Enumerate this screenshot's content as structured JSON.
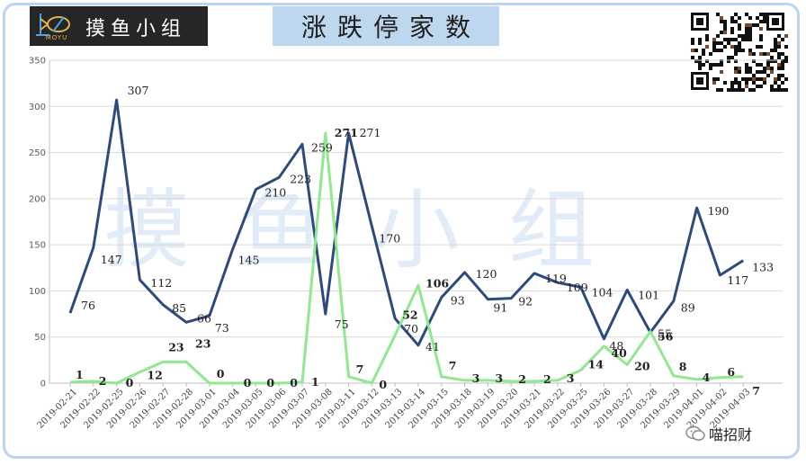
{
  "logo": {
    "name": "摸鱼小组",
    "sub": "MOYU",
    "icon": "fish-logo-icon"
  },
  "title": "涨跌停家数",
  "watermark": "摸鱼小组",
  "credit": {
    "text": "喵招财",
    "icon": "wechat-icon"
  },
  "qr": {
    "icon": "qr-code-icon"
  },
  "colors": {
    "limit_up": "#2e4a7d",
    "limit_down": "#90e890",
    "grid": "#d9d9d9",
    "frame": "#b9d5ef",
    "title_bg": "#bdd7ee"
  },
  "chart_data": {
    "type": "line",
    "title": "涨跌停家数",
    "xlabel": "",
    "ylabel": "",
    "ylim": [
      0,
      350
    ],
    "yticks": [
      0,
      50,
      100,
      150,
      200,
      250,
      300,
      350
    ],
    "grid": true,
    "legend": "none",
    "categories": [
      "2019-02-21",
      "2019-02-22",
      "2019-02-25",
      "2019-02-26",
      "2019-02-27",
      "2019-02-28",
      "2019-03-01",
      "2019-03-04",
      "2019-03-05",
      "2019-03-06",
      "2019-03-07",
      "2019-03-08",
      "2019-03-11",
      "2019-03-12",
      "2019-03-13",
      "2019-03-14",
      "2019-03-15",
      "2019-03-18",
      "2019-03-19",
      "2019-03-20",
      "2019-03-21",
      "2019-03-22",
      "2019-03-25",
      "2019-03-26",
      "2019-03-27",
      "2019-03-28",
      "2019-03-29",
      "2019-04-01",
      "2019-04-02",
      "2019-04-03"
    ],
    "series": [
      {
        "color": "#2e4a7d",
        "values": [
          76,
          147,
          307,
          112,
          85,
          66,
          73,
          145,
          210,
          223,
          259,
          75,
          271,
          170,
          70,
          41,
          93,
          120,
          91,
          92,
          119,
          109,
          104,
          48,
          101,
          55,
          89,
          190,
          117,
          133
        ]
      },
      {
        "color": "#90e890",
        "values": [
          1,
          2,
          0,
          12,
          23,
          23,
          0,
          0,
          0,
          0,
          1,
          271,
          7,
          0,
          52,
          106,
          7,
          3,
          3,
          2,
          2,
          3,
          14,
          40,
          20,
          56,
          8,
          4,
          6,
          7
        ]
      }
    ]
  }
}
